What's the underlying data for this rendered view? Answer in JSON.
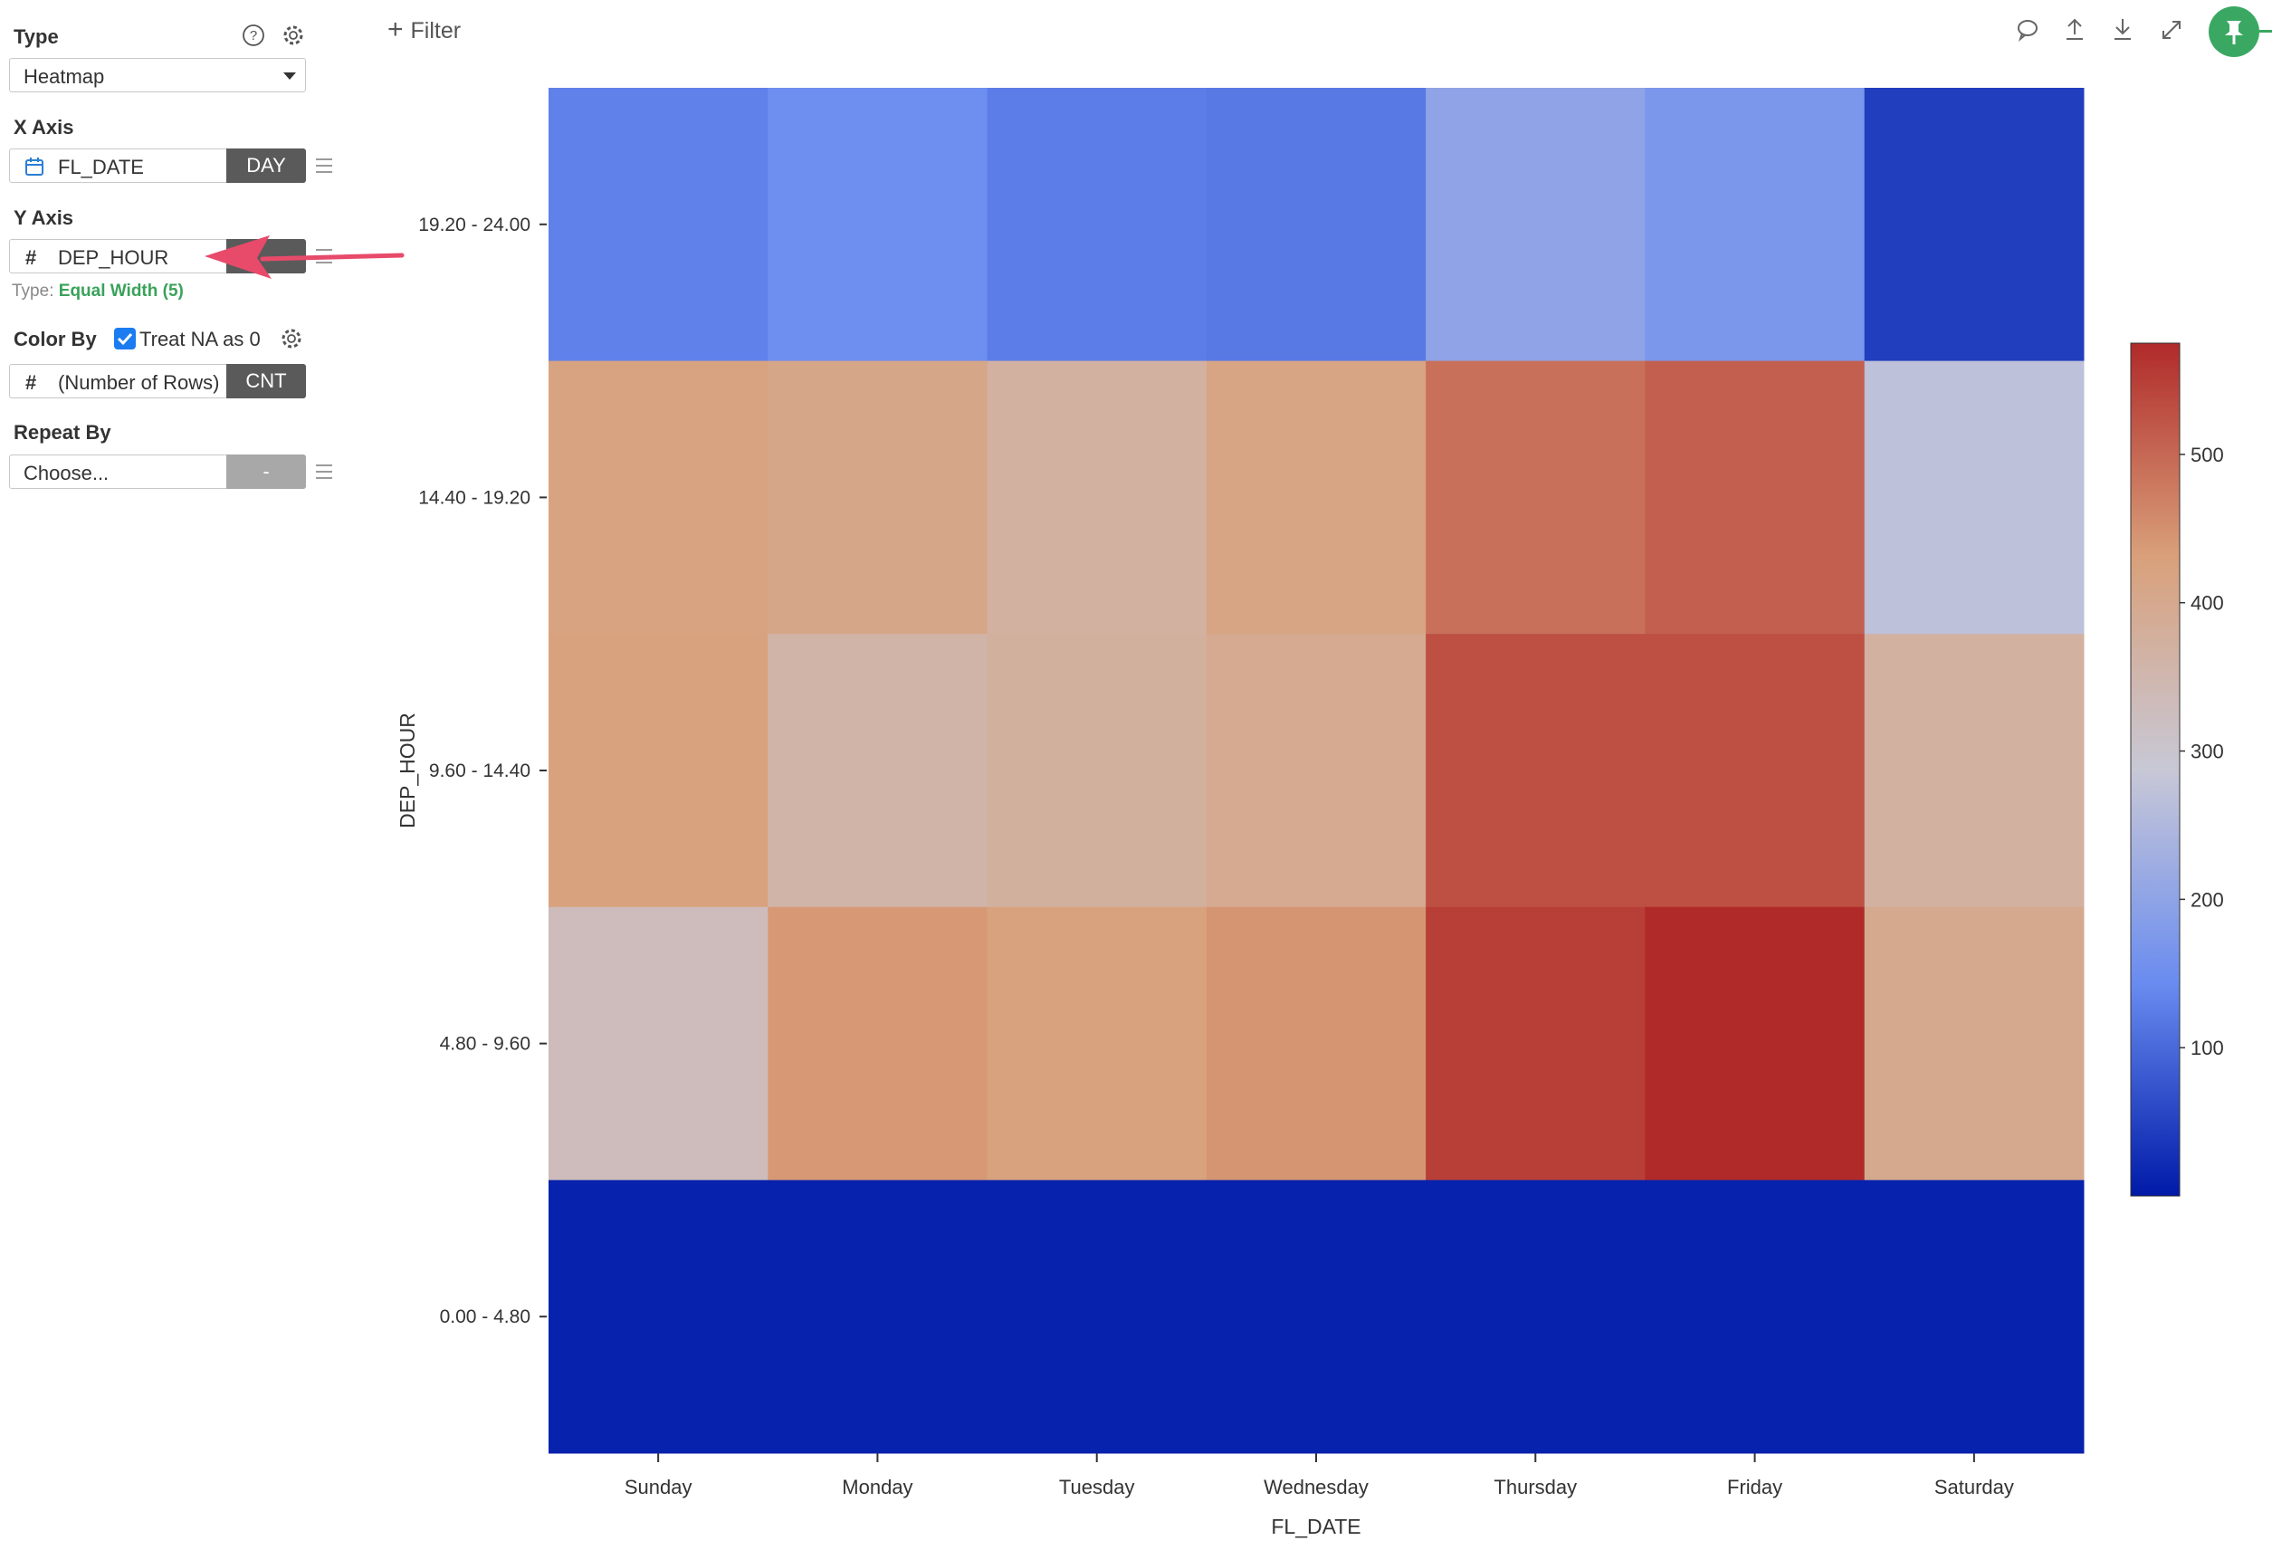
{
  "toolbar": {
    "filter_label": "Filter",
    "icons": [
      "comment-icon",
      "upload-icon",
      "download-icon",
      "expand-icon",
      "pin-icon"
    ]
  },
  "sidebar": {
    "type": {
      "title": "Type",
      "value": "Heatmap"
    },
    "x_axis": {
      "title": "X Axis",
      "field": "FL_DATE",
      "unit": "DAY"
    },
    "y_axis": {
      "title": "Y Axis",
      "field": "DEP_HOUR",
      "type_label": "Type:",
      "type_value": "Equal Width (5)"
    },
    "color_by": {
      "title": "Color By",
      "checkbox_label": "Treat NA as 0",
      "checked": true,
      "field": "(Number of Rows)",
      "agg": "CNT"
    },
    "repeat_by": {
      "title": "Repeat By",
      "placeholder": "Choose...",
      "agg": "-"
    }
  },
  "colors": {
    "accent_green": "#3aa25a",
    "arrow": "#e84a6a",
    "pin_green": "#3aa862"
  },
  "chart_data": {
    "type": "heatmap",
    "xlabel": "FL_DATE",
    "ylabel": "DEP_HOUR",
    "x_categories": [
      "Sunday",
      "Monday",
      "Tuesday",
      "Wednesday",
      "Thursday",
      "Friday",
      "Saturday"
    ],
    "y_categories": [
      "19.20 - 24.00",
      "14.40 - 19.20",
      "9.60 - 14.40",
      "4.80 - 9.60",
      "0.00 - 4.80"
    ],
    "values": [
      [
        130,
        150,
        125,
        120,
        200,
        170,
        45
      ],
      [
        420,
        410,
        370,
        415,
        490,
        510,
        270
      ],
      [
        425,
        360,
        375,
        395,
        530,
        530,
        370
      ],
      [
        330,
        440,
        425,
        445,
        550,
        575,
        400
      ],
      [
        10,
        10,
        10,
        10,
        10,
        10,
        10
      ]
    ],
    "color_scale": {
      "min": 0,
      "max": 575,
      "ticks": [
        100,
        200,
        300,
        400,
        500
      ],
      "colors": [
        "#001aa8",
        "#6a8cf0",
        "#c8c8d6",
        "#d9a07a",
        "#b02a2a"
      ]
    },
    "legend": "right"
  }
}
